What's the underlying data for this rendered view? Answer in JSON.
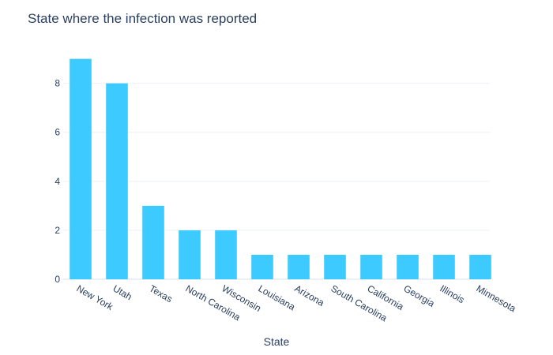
{
  "chart_data": {
    "type": "bar",
    "title": "State where the infection was reported",
    "xlabel": "State",
    "ylabel": "",
    "categories": [
      "New York",
      "Utah",
      "Texas",
      "North Carolina",
      "Wisconsin",
      "Louisiana",
      "Arizona",
      "South Carolina",
      "California",
      "Georgia",
      "Illinois",
      "Minnesota"
    ],
    "values": [
      9,
      8,
      3,
      2,
      2,
      1,
      1,
      1,
      1,
      1,
      1,
      1
    ],
    "ylim": [
      0,
      9.47
    ],
    "yticks": [
      0,
      2,
      4,
      6,
      8
    ],
    "grid": true,
    "bar_color": "#3dcbff"
  }
}
